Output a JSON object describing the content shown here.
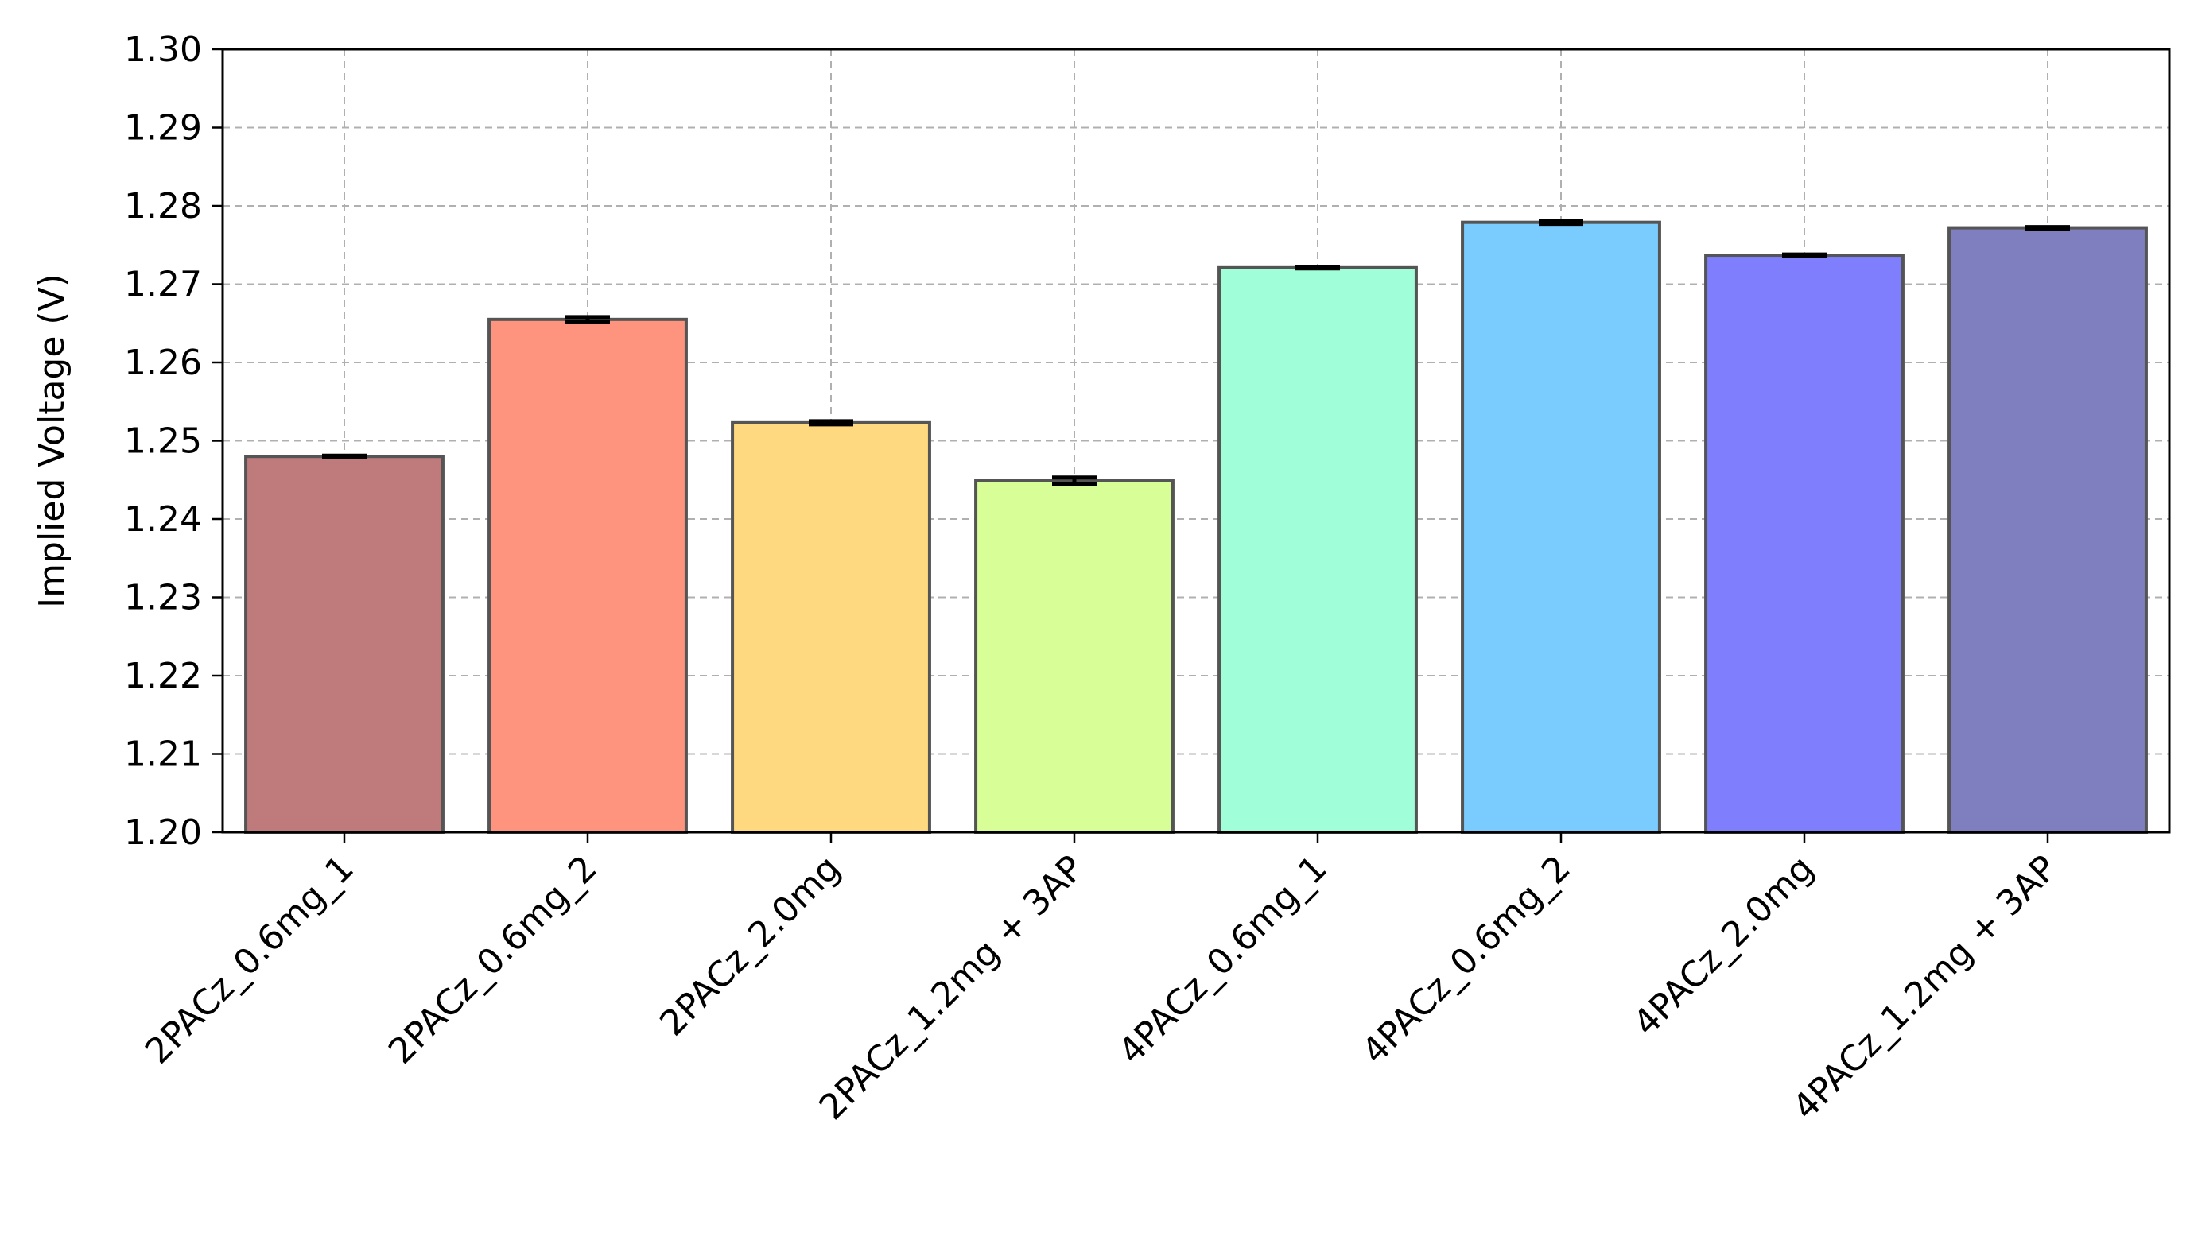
{
  "chart_data": {
    "type": "bar",
    "title": "",
    "xlabel": "",
    "ylabel": "Implied Voltage (V)",
    "ylim": [
      1.2,
      1.3
    ],
    "yticks": [
      "1.20",
      "1.21",
      "1.22",
      "1.23",
      "1.24",
      "1.25",
      "1.26",
      "1.27",
      "1.28",
      "1.29",
      "1.30"
    ],
    "grid": true,
    "categories": [
      "2PACz_0.6mg_1",
      "2PACz_0.6mg_2",
      "2PACz_2.0mg",
      "2PACz_1.2mg + 3AP",
      "4PACz_0.6mg_1",
      "4PACz_0.6mg_2",
      "4PACz_2.0mg",
      "4PACz_1.2mg + 3AP"
    ],
    "values": [
      1.248,
      1.2655,
      1.2523,
      1.2449,
      1.2721,
      1.2779,
      1.2737,
      1.2772
    ],
    "errors": [
      0.0001,
      0.0003,
      0.0002,
      0.0004,
      0.0001,
      0.0002,
      0.0001,
      0.0001
    ],
    "colors": [
      "#bf7b7b",
      "#fe947d",
      "#fed97f",
      "#d8fe97",
      "#a0fed8",
      "#7acbfe",
      "#7f7ffe",
      "#7f7fbf"
    ]
  }
}
